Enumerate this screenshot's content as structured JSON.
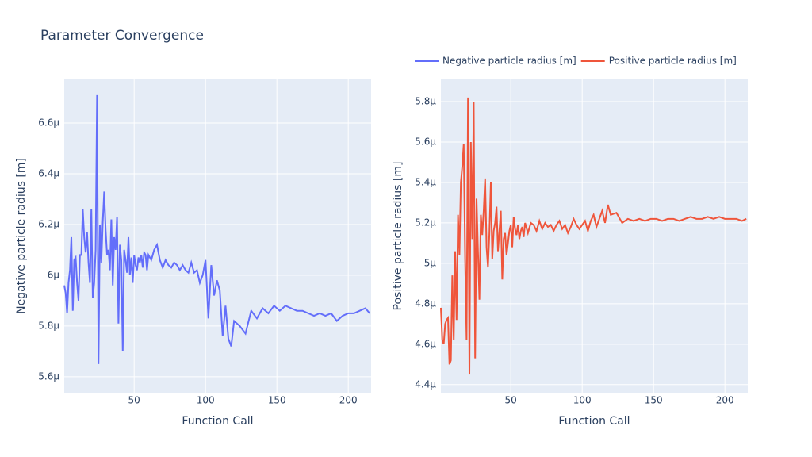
{
  "chart_data": [
    {
      "type": "line",
      "title": "Parameter Convergence",
      "x_label": "Function Call",
      "y_label": "Negative particle radius [m]",
      "x": [
        1,
        2,
        3,
        4,
        5,
        6,
        7,
        8,
        9,
        10,
        11,
        12,
        13,
        14,
        15,
        16,
        17,
        18,
        19,
        20,
        21,
        22,
        23,
        24,
        25,
        26,
        27,
        28,
        29,
        30,
        31,
        32,
        33,
        34,
        35,
        36,
        37,
        38,
        39,
        40,
        41,
        42,
        43,
        44,
        45,
        46,
        47,
        48,
        49,
        50,
        51,
        52,
        53,
        54,
        55,
        56,
        57,
        58,
        59,
        60,
        62,
        64,
        66,
        68,
        70,
        72,
        74,
        76,
        78,
        80,
        82,
        84,
        86,
        88,
        90,
        92,
        94,
        96,
        98,
        100,
        102,
        104,
        106,
        108,
        110,
        112,
        114,
        116,
        118,
        120,
        124,
        128,
        132,
        136,
        140,
        144,
        148,
        152,
        156,
        160,
        164,
        168,
        172,
        176,
        180,
        184,
        188,
        192,
        196,
        200,
        204,
        208,
        212,
        215
      ],
      "series": [
        {
          "name": "Negative particle radius [m]",
          "color": "#636efa",
          "values": [
            5.96e-06,
            5.93e-06,
            5.85e-06,
            5.97e-06,
            6.02e-06,
            6.15e-06,
            5.86e-06,
            6.06e-06,
            6.07e-06,
            5.97e-06,
            5.9e-06,
            6.08e-06,
            6.08e-06,
            6.26e-06,
            6.15e-06,
            6.09e-06,
            6.17e-06,
            6.05e-06,
            5.97e-06,
            6.26e-06,
            5.91e-06,
            5.97e-06,
            6.1e-06,
            6.71e-06,
            5.65e-06,
            6.2e-06,
            6.05e-06,
            6.21e-06,
            6.33e-06,
            6.18e-06,
            6.08e-06,
            6.1e-06,
            6.02e-06,
            6.22e-06,
            5.96e-06,
            6.15e-06,
            6.1e-06,
            6.23e-06,
            5.81e-06,
            6.12e-06,
            6.06e-06,
            5.7e-06,
            6.1e-06,
            6.06e-06,
            6.01e-06,
            6.15e-06,
            6e-06,
            6.07e-06,
            5.97e-06,
            6.08e-06,
            6.04e-06,
            6.02e-06,
            6.07e-06,
            6.05e-06,
            6.08e-06,
            6.03e-06,
            6.09e-06,
            6.08e-06,
            6.02e-06,
            6.08e-06,
            6.06e-06,
            6.1e-06,
            6.12e-06,
            6.06e-06,
            6.03e-06,
            6.06e-06,
            6.04e-06,
            6.03e-06,
            6.05e-06,
            6.04e-06,
            6.02e-06,
            6.04e-06,
            6.02e-06,
            6.01e-06,
            6.05e-06,
            6.01e-06,
            6.02e-06,
            5.97e-06,
            6e-06,
            6.06e-06,
            5.83e-06,
            6.04e-06,
            5.92e-06,
            5.98e-06,
            5.94e-06,
            5.76e-06,
            5.88e-06,
            5.75e-06,
            5.72e-06,
            5.82e-06,
            5.8e-06,
            5.77e-06,
            5.86e-06,
            5.83e-06,
            5.87e-06,
            5.85e-06,
            5.88e-06,
            5.86e-06,
            5.88e-06,
            5.87e-06,
            5.86e-06,
            5.86e-06,
            5.85e-06,
            5.84e-06,
            5.85e-06,
            5.84e-06,
            5.85e-06,
            5.82e-06,
            5.84e-06,
            5.85e-06,
            5.85e-06,
            5.86e-06,
            5.87e-06,
            5.85e-06
          ]
        }
      ],
      "xlim": [
        1,
        216
      ],
      "ylim": [
        5.537e-06,
        6.772e-06
      ],
      "xticks": [
        50,
        100,
        150,
        200
      ],
      "yticks": [
        {
          "value": 5.6e-06,
          "label": "5.6μ"
        },
        {
          "value": 5.8e-06,
          "label": "5.8μ"
        },
        {
          "value": 6e-06,
          "label": "6μ"
        },
        {
          "value": 6.2e-06,
          "label": "6.2μ"
        },
        {
          "value": 6.4e-06,
          "label": "6.4μ"
        },
        {
          "value": 6.6e-06,
          "label": "6.6μ"
        }
      ],
      "grid": true
    },
    {
      "type": "line",
      "x_label": "Function Call",
      "y_label": "Positive particle radius [m]",
      "x": [
        1,
        2,
        3,
        4,
        5,
        6,
        7,
        8,
        9,
        10,
        11,
        12,
        13,
        14,
        15,
        16,
        17,
        18,
        19,
        20,
        21,
        22,
        23,
        24,
        25,
        26,
        27,
        28,
        29,
        30,
        31,
        32,
        33,
        34,
        35,
        36,
        37,
        38,
        39,
        40,
        41,
        42,
        43,
        44,
        45,
        46,
        47,
        48,
        49,
        50,
        51,
        52,
        53,
        54,
        55,
        56,
        57,
        58,
        59,
        60,
        62,
        64,
        66,
        68,
        70,
        72,
        74,
        76,
        78,
        80,
        82,
        84,
        86,
        88,
        90,
        92,
        94,
        96,
        98,
        100,
        102,
        104,
        106,
        108,
        110,
        112,
        114,
        116,
        118,
        120,
        124,
        128,
        132,
        136,
        140,
        144,
        148,
        152,
        156,
        160,
        164,
        168,
        172,
        176,
        180,
        184,
        188,
        192,
        196,
        200,
        204,
        208,
        212,
        215
      ],
      "series": [
        {
          "name": "Positive particle radius [m]",
          "color": "#ef553b",
          "values": [
            4.78e-06,
            4.62e-06,
            4.6e-06,
            4.7e-06,
            4.72e-06,
            4.73e-06,
            4.5e-06,
            4.52e-06,
            4.94e-06,
            4.62e-06,
            5.06e-06,
            4.72e-06,
            5.24e-06,
            5.04e-06,
            5.4e-06,
            5.48e-06,
            5.59e-06,
            5.02e-06,
            4.62e-06,
            5.82e-06,
            4.45e-06,
            5.6e-06,
            5.12e-06,
            5.8e-06,
            4.53e-06,
            5.32e-06,
            5.06e-06,
            4.82e-06,
            5.24e-06,
            5.14e-06,
            5.26e-06,
            5.42e-06,
            5.08e-06,
            4.98e-06,
            5.15e-06,
            5.4e-06,
            5.02e-06,
            5.16e-06,
            5.2e-06,
            5.28e-06,
            5.06e-06,
            5.16e-06,
            5.26e-06,
            4.92e-06,
            5.12e-06,
            5.15e-06,
            5.04e-06,
            5.1e-06,
            5.16e-06,
            5.19e-06,
            5.08e-06,
            5.23e-06,
            5.17e-06,
            5.14e-06,
            5.19e-06,
            5.12e-06,
            5.16e-06,
            5.18e-06,
            5.13e-06,
            5.2e-06,
            5.15e-06,
            5.2e-06,
            5.19e-06,
            5.16e-06,
            5.21e-06,
            5.17e-06,
            5.2e-06,
            5.18e-06,
            5.19e-06,
            5.16e-06,
            5.19e-06,
            5.21e-06,
            5.17e-06,
            5.19e-06,
            5.15e-06,
            5.18e-06,
            5.22e-06,
            5.19e-06,
            5.17e-06,
            5.19e-06,
            5.21e-06,
            5.16e-06,
            5.21e-06,
            5.24e-06,
            5.18e-06,
            5.22e-06,
            5.26e-06,
            5.2e-06,
            5.29e-06,
            5.24e-06,
            5.25e-06,
            5.2e-06,
            5.22e-06,
            5.21e-06,
            5.22e-06,
            5.21e-06,
            5.22e-06,
            5.22e-06,
            5.21e-06,
            5.22e-06,
            5.22e-06,
            5.21e-06,
            5.22e-06,
            5.23e-06,
            5.22e-06,
            5.22e-06,
            5.23e-06,
            5.22e-06,
            5.23e-06,
            5.22e-06,
            5.22e-06,
            5.22e-06,
            5.21e-06,
            5.22e-06
          ]
        }
      ],
      "xlim": [
        1,
        216
      ],
      "ylim": [
        4.36e-06,
        5.91e-06
      ],
      "xticks": [
        50,
        100,
        150,
        200
      ],
      "yticks": [
        {
          "value": 4.4e-06,
          "label": "4.4μ"
        },
        {
          "value": 4.6e-06,
          "label": "4.6μ"
        },
        {
          "value": 4.8e-06,
          "label": "4.8μ"
        },
        {
          "value": 5e-06,
          "label": "5μ"
        },
        {
          "value": 5.2e-06,
          "label": "5.2μ"
        },
        {
          "value": 5.4e-06,
          "label": "5.4μ"
        },
        {
          "value": 5.6e-06,
          "label": "5.6μ"
        },
        {
          "value": 5.8e-06,
          "label": "5.8μ"
        }
      ],
      "grid": true
    }
  ]
}
